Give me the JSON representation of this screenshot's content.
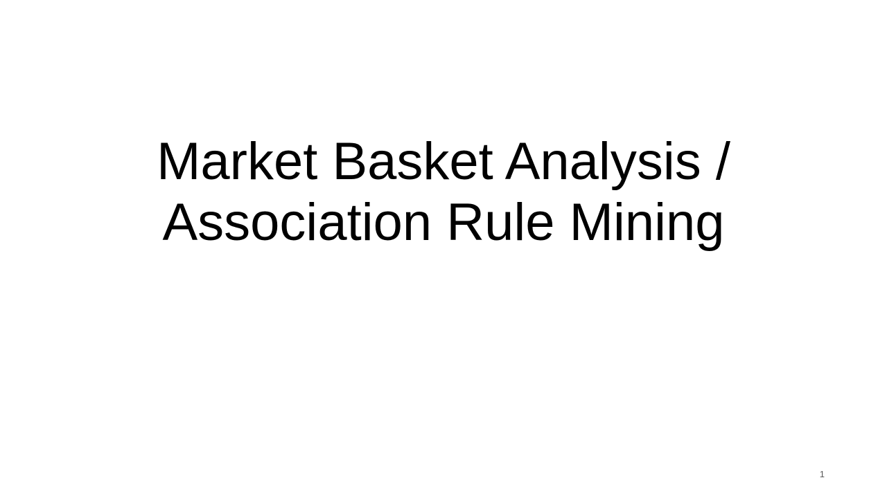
{
  "slide": {
    "title_lines": [
      "Market Basket Analysis /",
      "Association Rule Mining"
    ],
    "slide_number": "1"
  },
  "colors": {
    "background": "#ffffff",
    "title_text": "#000000",
    "slide_number_text": "#595959"
  }
}
